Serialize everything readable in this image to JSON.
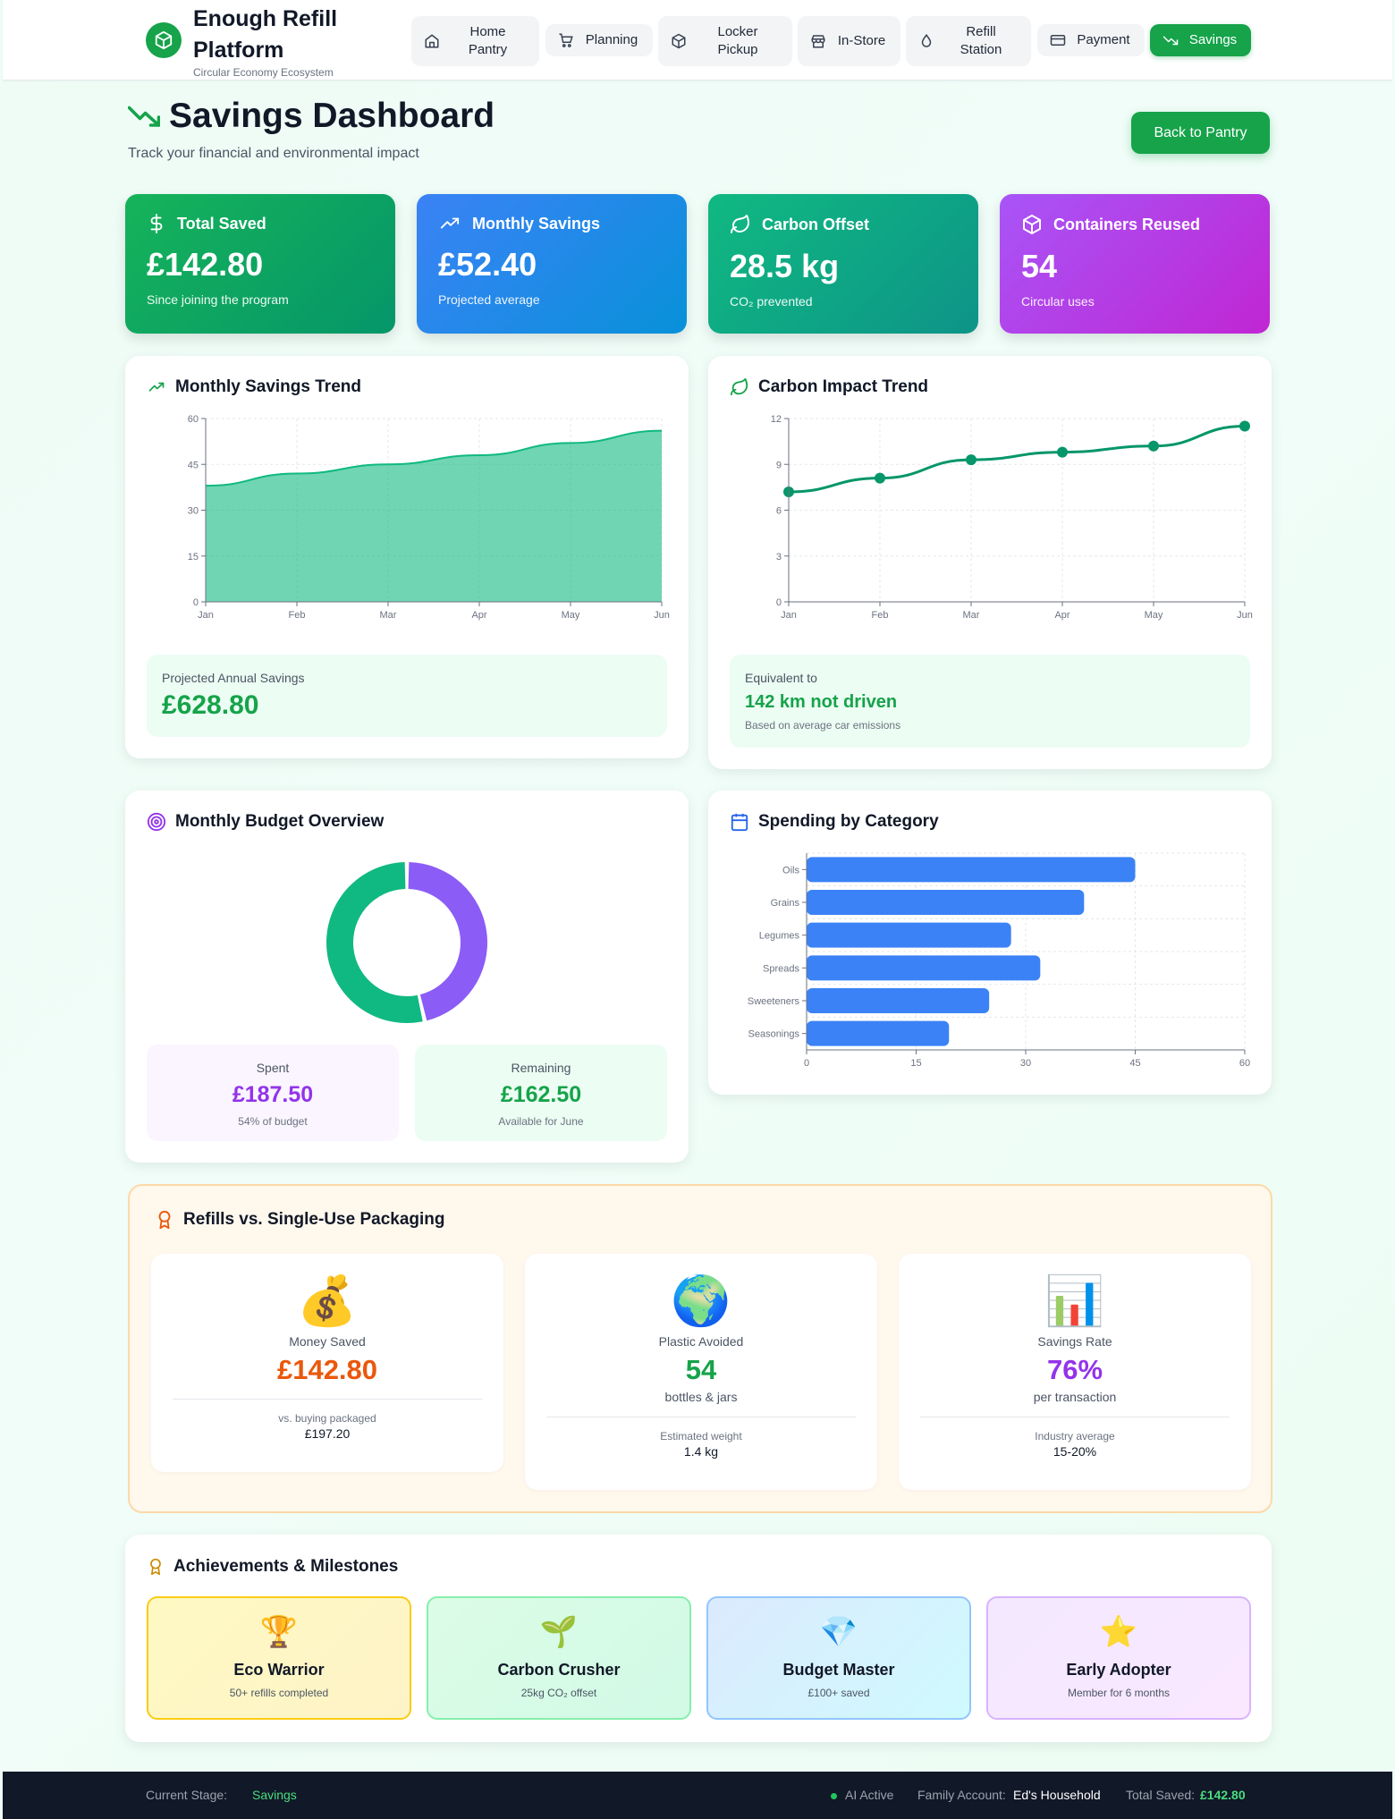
{
  "brand": {
    "title": "Enough Refill Platform",
    "subtitle": "Circular Economy Ecosystem"
  },
  "nav": [
    {
      "label": "Home Pantry",
      "icon": "home-icon"
    },
    {
      "label": "Planning",
      "icon": "cart-icon"
    },
    {
      "label": "Locker Pickup",
      "icon": "box-icon"
    },
    {
      "label": "In-Store",
      "icon": "store-icon"
    },
    {
      "label": "Refill Station",
      "icon": "droplet-icon"
    },
    {
      "label": "Payment",
      "icon": "card-icon"
    },
    {
      "label": "Savings",
      "icon": "trending-down-icon",
      "active": true
    }
  ],
  "page": {
    "title": "Savings Dashboard",
    "subtitle": "Track your financial and environmental impact",
    "back_label": "Back to Pantry"
  },
  "stats": [
    {
      "title": "Total Saved",
      "value": "£142.80",
      "note": "Since joining the program",
      "icon": "dollar-icon"
    },
    {
      "title": "Monthly Savings",
      "value": "£52.40",
      "note": "Projected average",
      "icon": "trending-up-icon"
    },
    {
      "title": "Carbon Offset",
      "value": "28.5 kg",
      "note": "CO₂ prevented",
      "icon": "leaf-icon"
    },
    {
      "title": "Containers Reused",
      "value": "54",
      "note": "Circular uses",
      "icon": "box-icon"
    }
  ],
  "savings_trend": {
    "title": "Monthly Savings Trend",
    "projected_label": "Projected Annual Savings",
    "projected_value": "£628.80"
  },
  "carbon_trend": {
    "title": "Carbon Impact Trend",
    "equiv_label": "Equivalent to",
    "equiv_value": "142 km not driven",
    "equiv_note": "Based on average car emissions"
  },
  "budget": {
    "title": "Monthly Budget Overview",
    "spent_label": "Spent",
    "spent_value": "£187.50",
    "spent_note": "54% of budget",
    "remaining_label": "Remaining",
    "remaining_value": "£162.50",
    "remaining_note": "Available for June"
  },
  "category": {
    "title": "Spending by Category"
  },
  "chart_data": [
    {
      "type": "area",
      "title": "Monthly Savings Trend",
      "categories": [
        "Jan",
        "Feb",
        "Mar",
        "Apr",
        "May",
        "Jun"
      ],
      "values": [
        38,
        42,
        45,
        48,
        52,
        56
      ],
      "ylim": [
        0,
        60
      ],
      "yticks": [
        0,
        15,
        30,
        45,
        60
      ],
      "grid": true,
      "color": "#10b981"
    },
    {
      "type": "line",
      "title": "Carbon Impact Trend",
      "categories": [
        "Jan",
        "Feb",
        "Mar",
        "Apr",
        "May",
        "Jun"
      ],
      "values": [
        7.2,
        8.1,
        9.3,
        9.8,
        10.2,
        11.5
      ],
      "ylim": [
        0,
        12
      ],
      "yticks": [
        0,
        3,
        6,
        9,
        12
      ],
      "grid": true,
      "color": "#059669"
    },
    {
      "type": "pie",
      "title": "Monthly Budget Overview",
      "categories": [
        "Spent",
        "Remaining"
      ],
      "values": [
        187.5,
        162.5
      ],
      "colors": [
        "#10b981",
        "#8b5cf6"
      ]
    },
    {
      "type": "bar",
      "orientation": "horizontal",
      "title": "Spending by Category",
      "categories": [
        "Oils",
        "Grains",
        "Legumes",
        "Spreads",
        "Sweeteners",
        "Seasonings"
      ],
      "values": [
        45,
        38,
        28,
        32,
        25,
        19.5
      ],
      "xlim": [
        0,
        60
      ],
      "xticks": [
        0,
        15,
        30,
        45,
        60
      ],
      "grid": true,
      "color": "#3b82f6"
    }
  ],
  "refills": {
    "title": "Refills vs. Single-Use Packaging",
    "cards": [
      {
        "emoji": "💰",
        "title": "Money Saved",
        "value": "£142.80",
        "unit": "",
        "foot_label": "vs. buying packaged",
        "foot_value": "£197.20",
        "color": "#ea580c"
      },
      {
        "emoji": "🌍",
        "title": "Plastic Avoided",
        "value": "54",
        "unit": "bottles & jars",
        "foot_label": "Estimated weight",
        "foot_value": "1.4 kg",
        "color": "#16a34a"
      },
      {
        "emoji": "📊",
        "title": "Savings Rate",
        "value": "76%",
        "unit": "per transaction",
        "foot_label": "Industry average",
        "foot_value": "15-20%",
        "color": "#9333ea"
      }
    ]
  },
  "achievements": {
    "title": "Achievements & Milestones",
    "items": [
      {
        "emoji": "🏆",
        "title": "Eco Warrior",
        "sub": "50+ refills completed"
      },
      {
        "emoji": "🌱",
        "title": "Carbon Crusher",
        "sub": "25kg CO₂ offset"
      },
      {
        "emoji": "💎",
        "title": "Budget Master",
        "sub": "£100+ saved"
      },
      {
        "emoji": "⭐",
        "title": "Early Adopter",
        "sub": "Member for 6 months"
      }
    ]
  },
  "footer": {
    "stage_label": "Current Stage:",
    "stage_value": "Savings",
    "ai_status": "AI Active",
    "family_label": "Family Account:",
    "family_value": "Ed's Household",
    "total_label": "Total Saved:",
    "total_value": "£142.80"
  }
}
